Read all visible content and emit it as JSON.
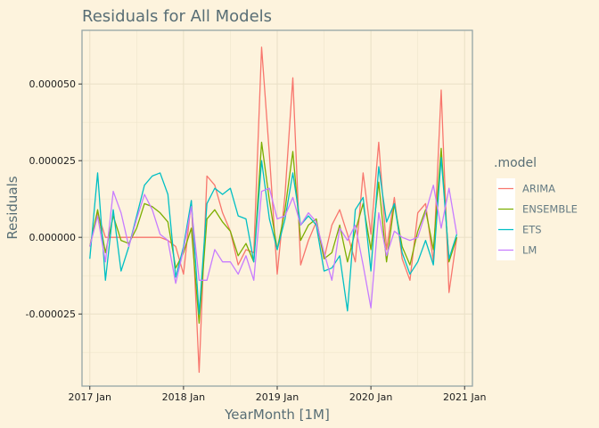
{
  "chart_data": {
    "type": "line",
    "title": "Residuals for All Models",
    "xlabel": "YearMonth [1M]",
    "ylabel": "Residuals",
    "x": [
      "2017 Jan",
      "2017 Feb",
      "2017 Mar",
      "2017 Apr",
      "2017 May",
      "2017 Jun",
      "2017 Jul",
      "2017 Aug",
      "2017 Sep",
      "2017 Oct",
      "2017 Nov",
      "2017 Dec",
      "2018 Jan",
      "2018 Feb",
      "2018 Mar",
      "2018 Apr",
      "2018 May",
      "2018 Jun",
      "2018 Jul",
      "2018 Aug",
      "2018 Sep",
      "2018 Oct",
      "2018 Nov",
      "2018 Dec",
      "2019 Jan",
      "2019 Feb",
      "2019 Mar",
      "2019 Apr",
      "2019 May",
      "2019 Jun",
      "2019 Jul",
      "2019 Aug",
      "2019 Sep",
      "2019 Oct",
      "2019 Nov",
      "2019 Dec",
      "2020 Jan",
      "2020 Feb",
      "2020 Mar",
      "2020 Apr",
      "2020 May",
      "2020 Jun",
      "2020 Jul",
      "2020 Aug",
      "2020 Sep",
      "2020 Oct",
      "2020 Nov",
      "2020 Dec"
    ],
    "xticks": [
      "2017 Jan",
      "2018 Jan",
      "2019 Jan",
      "2020 Jan",
      "2021 Jan"
    ],
    "xlim": [
      "2016 Dec",
      "2021 Feb"
    ],
    "yticks": [
      -2.5e-05,
      0,
      2.5e-05,
      5e-05
    ],
    "yticklabels": [
      "-0.000025",
      "0.000000",
      "0.000025",
      "0.000050"
    ],
    "ylim": [
      -4.85e-05,
      6.75e-05
    ],
    "grid": true,
    "legend": {
      "title": ".model",
      "position": "right"
    },
    "series": [
      {
        "name": "ARIMA",
        "color": "#f8766d",
        "values": [
          -3e-06,
          8e-06,
          0,
          0,
          0,
          0,
          0,
          0,
          0,
          0,
          -1e-06,
          -3e-06,
          -1.2e-05,
          1.2e-05,
          -4.4e-05,
          2e-05,
          1.7e-05,
          8e-06,
          2e-06,
          -9e-06,
          -4e-06,
          -5e-06,
          6.2e-05,
          2.7e-05,
          -1.2e-05,
          1.4e-05,
          5.2e-05,
          -9e-06,
          -1e-06,
          5e-06,
          -7e-06,
          4e-06,
          9e-06,
          1e-06,
          -8e-06,
          2.1e-05,
          1e-06,
          3.1e-05,
          -4e-06,
          1.3e-05,
          -7e-06,
          -1.4e-05,
          8e-06,
          1.1e-05,
          -8e-06,
          4.8e-05,
          -1.8e-05,
          0
        ]
      },
      {
        "name": "ENSEMBLE",
        "color": "#7cae00",
        "values": [
          -3e-06,
          9e-06,
          -5e-06,
          7e-06,
          -1e-06,
          -2e-06,
          3e-06,
          1.1e-05,
          1e-05,
          8e-06,
          5e-06,
          -1e-05,
          -5e-06,
          3e-06,
          -2.8e-05,
          6e-06,
          9e-06,
          5e-06,
          2e-06,
          -6e-06,
          -2e-06,
          -8e-06,
          3.1e-05,
          1.2e-05,
          -4e-06,
          9e-06,
          2.8e-05,
          -1e-06,
          4e-06,
          6e-06,
          -7e-06,
          -5e-06,
          4e-06,
          -8e-06,
          2e-06,
          1.1e-05,
          -4e-06,
          1.8e-05,
          -8e-06,
          1.1e-05,
          -3e-06,
          -9e-06,
          2e-06,
          9e-06,
          -4e-06,
          2.9e-05,
          -8e-06,
          0
        ]
      },
      {
        "name": "ETS",
        "color": "#00bfc4",
        "values": [
          -7e-06,
          2.1e-05,
          -1.4e-05,
          9e-06,
          -1.1e-05,
          -3e-06,
          7e-06,
          1.7e-05,
          2e-05,
          2.1e-05,
          1.4e-05,
          -1.3e-05,
          -3e-06,
          1.2e-05,
          -2.5e-05,
          1.1e-05,
          1.6e-05,
          1.4e-05,
          1.6e-05,
          7e-06,
          6e-06,
          -8e-06,
          2.5e-05,
          6e-06,
          -4e-06,
          6e-06,
          2.1e-05,
          4e-06,
          7e-06,
          4e-06,
          -1.1e-05,
          -1e-05,
          -6e-06,
          -2.4e-05,
          9e-06,
          1.3e-05,
          -1.1e-05,
          2.3e-05,
          5e-06,
          1.1e-05,
          -5e-06,
          -1.2e-05,
          -8e-06,
          -1e-06,
          -9e-06,
          2.6e-05,
          -7e-06,
          1e-06
        ]
      },
      {
        "name": "LM",
        "color": "#c77cff",
        "values": [
          -3e-06,
          7e-06,
          -8e-06,
          1.5e-05,
          8e-06,
          -3e-06,
          6e-06,
          1.4e-05,
          9e-06,
          1e-06,
          -1e-06,
          -1.5e-05,
          -4e-06,
          1e-05,
          -1.4e-05,
          -1.4e-05,
          -4e-06,
          -8e-06,
          -8e-06,
          -1.2e-05,
          -6e-06,
          -1.4e-05,
          1.5e-05,
          1.6e-05,
          6e-06,
          7e-06,
          1.3e-05,
          4e-06,
          8e-06,
          5e-06,
          -5e-06,
          -1.4e-05,
          3e-06,
          -1e-06,
          4e-06,
          -9e-06,
          -2.3e-05,
          8e-06,
          -6e-06,
          2e-06,
          0,
          -1e-06,
          0,
          8e-06,
          1.7e-05,
          3e-06,
          1.6e-05,
          1e-06
        ]
      }
    ]
  }
}
